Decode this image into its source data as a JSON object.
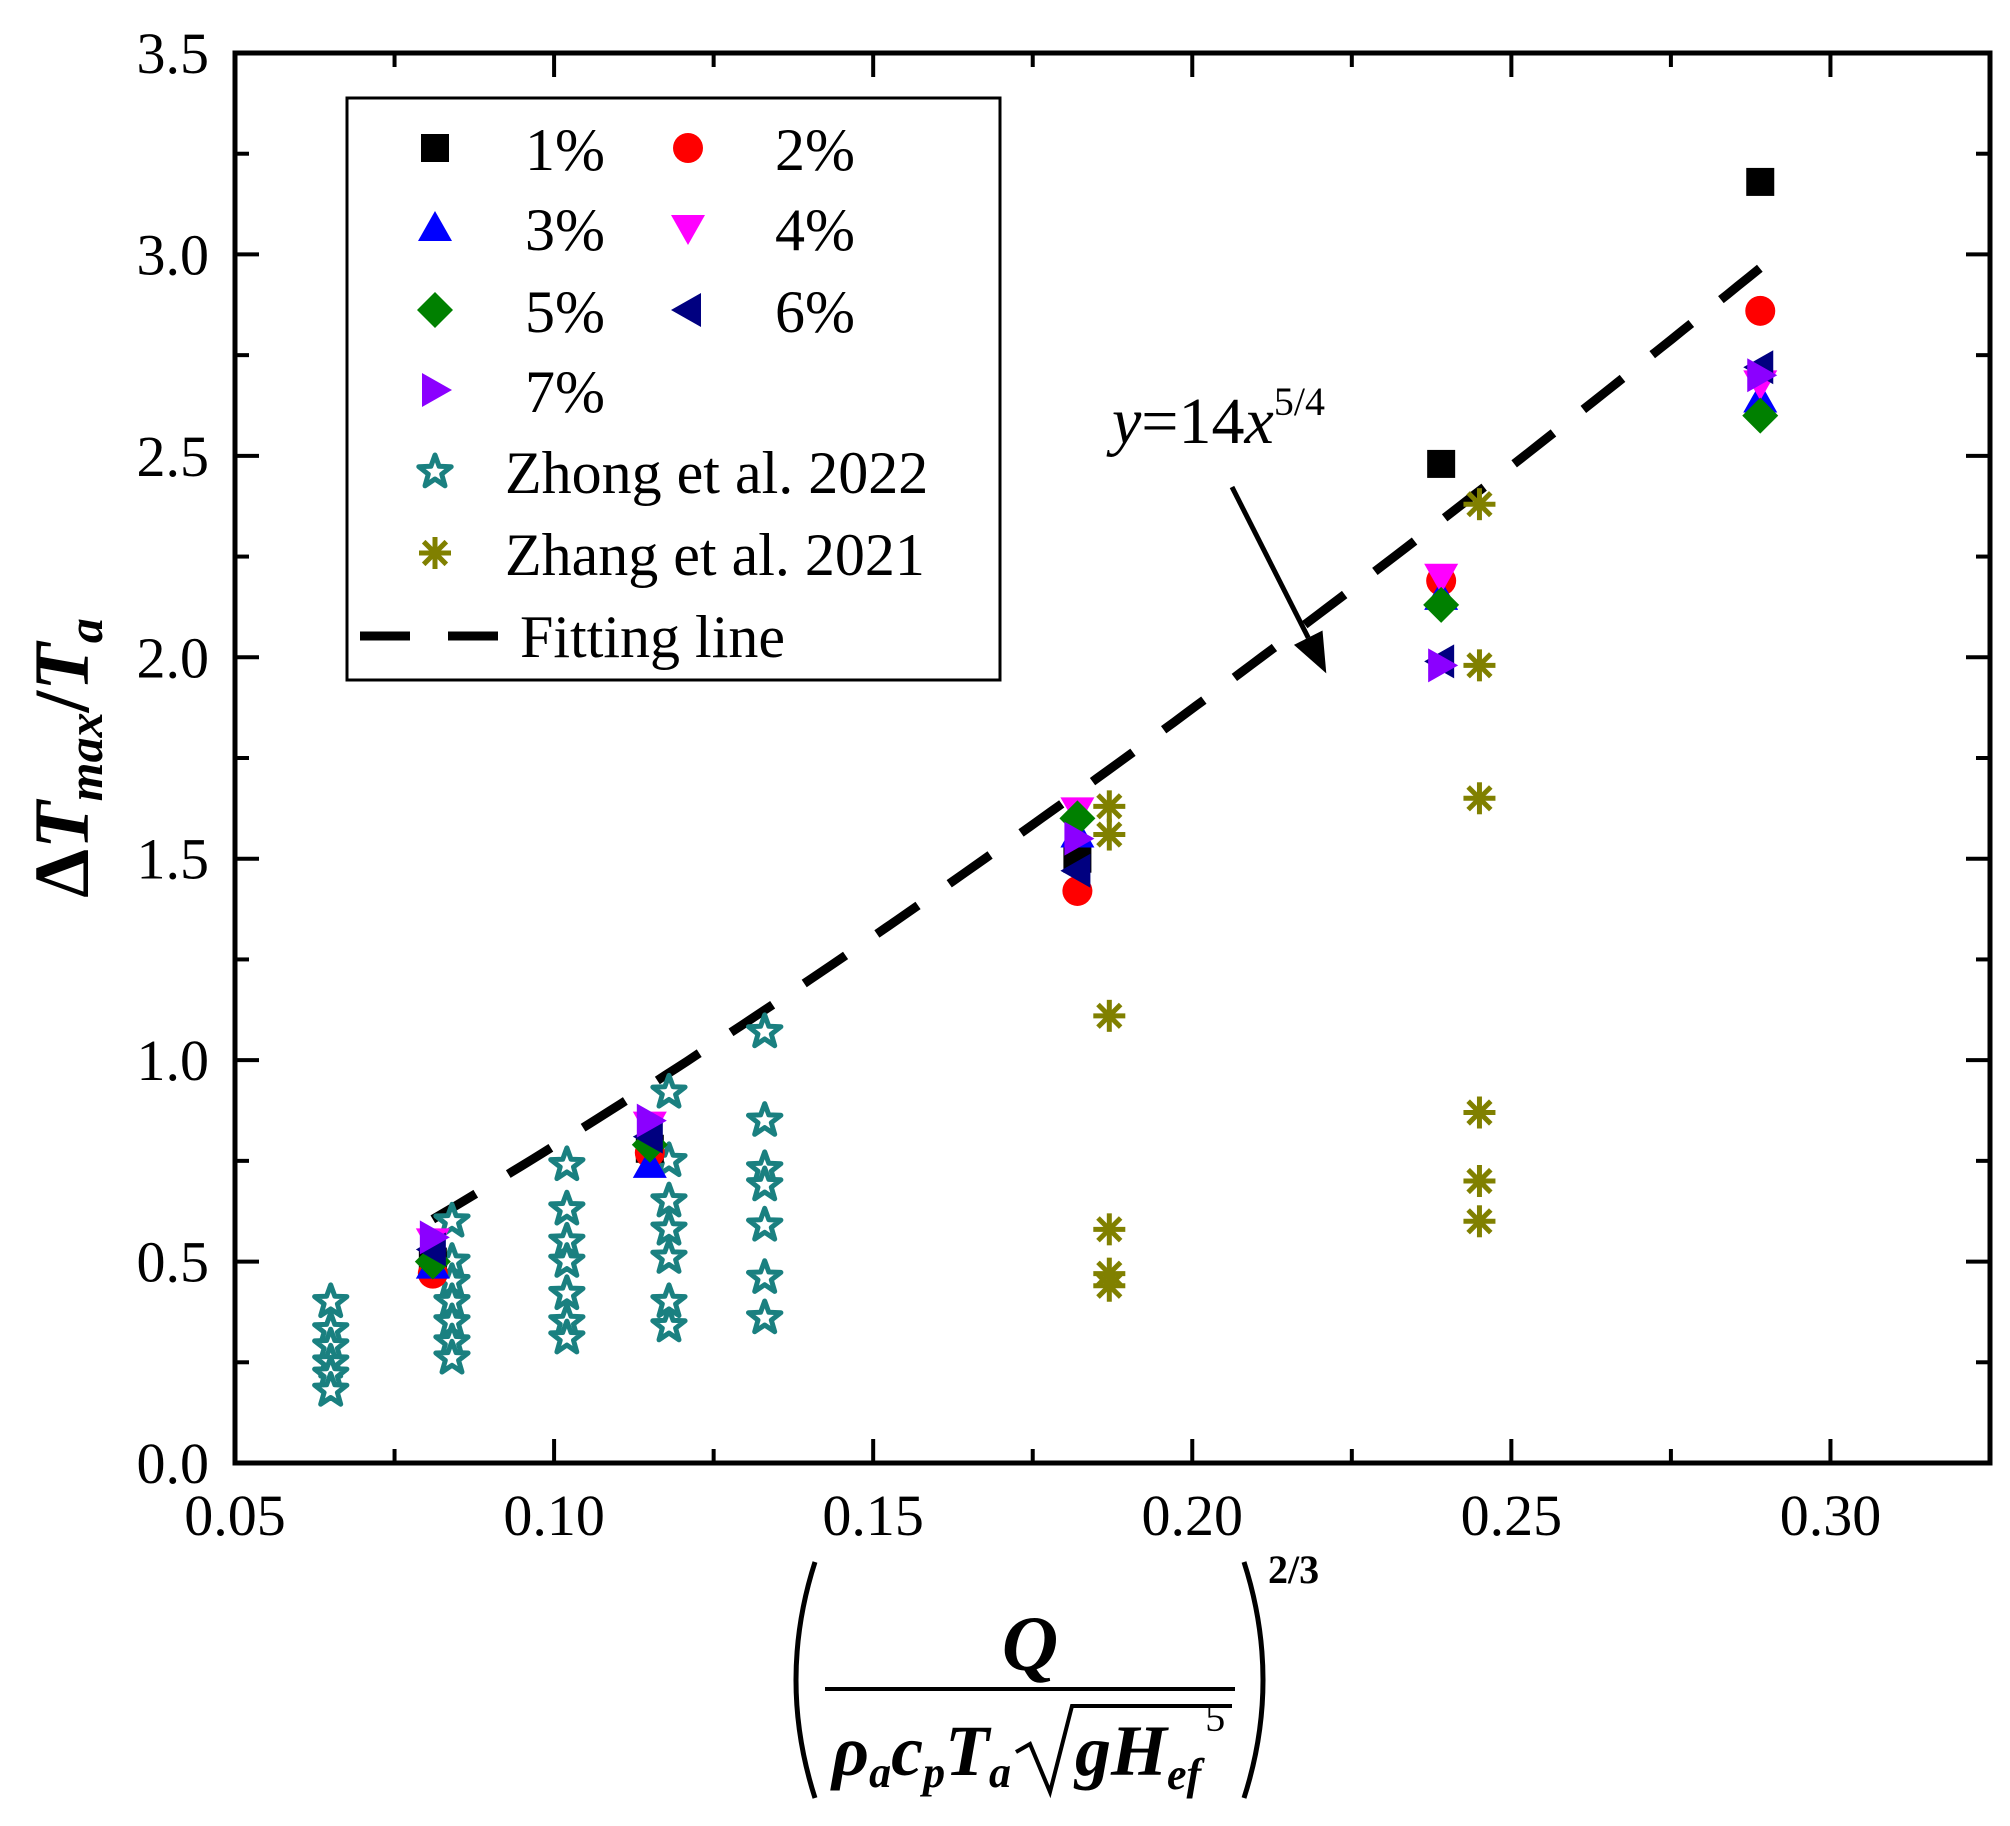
{
  "chart_data": {
    "type": "scatter",
    "xlim": [
      0.05,
      0.325
    ],
    "ylim": [
      0.0,
      3.5
    ],
    "x_ticks": [
      "0.05",
      "0.10",
      "0.15",
      "0.20",
      "0.25",
      "0.30"
    ],
    "y_ticks": [
      "0.0",
      "0.5",
      "1.0",
      "1.5",
      "2.0",
      "2.5",
      "3.0",
      "3.5"
    ],
    "ylabel": {
      "delta": "Δ",
      "T1": "T",
      "sub1": "max",
      "slash": "/",
      "T2": "T",
      "sub2": "a"
    },
    "xlabel": {
      "numerator": "Q",
      "rho": "ρ",
      "rho_sub": "a",
      "c": "c",
      "c_sub": "p",
      "T": "T",
      "T_sub": "a",
      "g": "g",
      "H": "H",
      "H_sub": "ef",
      "H_sup": "5",
      "exponent": "2/3"
    },
    "annotation": {
      "y": "y",
      "eq": "=14",
      "x": "x",
      "power": "5/4",
      "arrow_to": [
        0.221,
        1.96
      ]
    },
    "series": [
      {
        "name": "1%",
        "marker": "square",
        "color": "#000000",
        "points": [
          [
            0.081,
            0.5
          ],
          [
            0.115,
            0.78
          ],
          [
            0.182,
            1.5
          ],
          [
            0.239,
            2.48
          ],
          [
            0.289,
            3.18
          ]
        ]
      },
      {
        "name": "2%",
        "marker": "circle",
        "color": "#ff0000",
        "points": [
          [
            0.081,
            0.47
          ],
          [
            0.115,
            0.77
          ],
          [
            0.182,
            1.42
          ],
          [
            0.239,
            2.19
          ],
          [
            0.289,
            2.86
          ]
        ]
      },
      {
        "name": "3%",
        "marker": "triangle-up",
        "color": "#0000ff",
        "points": [
          [
            0.081,
            0.49
          ],
          [
            0.115,
            0.74
          ],
          [
            0.182,
            1.56
          ],
          [
            0.239,
            2.15
          ],
          [
            0.289,
            2.64
          ]
        ]
      },
      {
        "name": "4%",
        "marker": "triangle-down",
        "color": "#ff00ff",
        "points": [
          [
            0.081,
            0.55
          ],
          [
            0.115,
            0.84
          ],
          [
            0.182,
            1.62
          ],
          [
            0.239,
            2.2
          ],
          [
            0.289,
            2.68
          ]
        ]
      },
      {
        "name": "5%",
        "marker": "diamond",
        "color": "#008000",
        "points": [
          [
            0.081,
            0.5
          ],
          [
            0.115,
            0.79
          ],
          [
            0.182,
            1.6
          ],
          [
            0.239,
            2.13
          ],
          [
            0.289,
            2.6
          ]
        ]
      },
      {
        "name": "6%",
        "marker": "triangle-left",
        "color": "#000080",
        "points": [
          [
            0.081,
            0.53
          ],
          [
            0.115,
            0.81
          ],
          [
            0.182,
            1.47
          ],
          [
            0.239,
            1.99
          ],
          [
            0.289,
            2.72
          ]
        ]
      },
      {
        "name": "7%",
        "marker": "triangle-right",
        "color": "#8b00ff",
        "points": [
          [
            0.081,
            0.56
          ],
          [
            0.115,
            0.85
          ],
          [
            0.182,
            1.55
          ],
          [
            0.239,
            1.98
          ],
          [
            0.289,
            2.7
          ]
        ]
      },
      {
        "name": "Zhong et al. 2022",
        "marker": "star-open",
        "color": "#1a8080",
        "points": [
          [
            0.065,
            0.4
          ],
          [
            0.065,
            0.33
          ],
          [
            0.065,
            0.29
          ],
          [
            0.065,
            0.25
          ],
          [
            0.065,
            0.22
          ],
          [
            0.065,
            0.18
          ],
          [
            0.084,
            0.6
          ],
          [
            0.084,
            0.5
          ],
          [
            0.084,
            0.45
          ],
          [
            0.084,
            0.4
          ],
          [
            0.084,
            0.35
          ],
          [
            0.084,
            0.3
          ],
          [
            0.084,
            0.26
          ],
          [
            0.102,
            0.74
          ],
          [
            0.102,
            0.63
          ],
          [
            0.102,
            0.55
          ],
          [
            0.102,
            0.5
          ],
          [
            0.102,
            0.42
          ],
          [
            0.102,
            0.35
          ],
          [
            0.102,
            0.31
          ],
          [
            0.118,
            0.92
          ],
          [
            0.118,
            0.75
          ],
          [
            0.118,
            0.65
          ],
          [
            0.118,
            0.58
          ],
          [
            0.118,
            0.51
          ],
          [
            0.118,
            0.4
          ],
          [
            0.118,
            0.34
          ],
          [
            0.133,
            1.07
          ],
          [
            0.133,
            0.85
          ],
          [
            0.133,
            0.73
          ],
          [
            0.133,
            0.69
          ],
          [
            0.133,
            0.59
          ],
          [
            0.133,
            0.46
          ],
          [
            0.133,
            0.36
          ]
        ]
      },
      {
        "name": "Zhang et al. 2021",
        "marker": "asterisk",
        "color": "#808000",
        "points": [
          [
            0.187,
            1.63
          ],
          [
            0.187,
            1.56
          ],
          [
            0.187,
            1.11
          ],
          [
            0.187,
            0.58
          ],
          [
            0.187,
            0.47
          ],
          [
            0.187,
            0.44
          ],
          [
            0.245,
            2.38
          ],
          [
            0.245,
            1.98
          ],
          [
            0.245,
            1.65
          ],
          [
            0.245,
            0.87
          ],
          [
            0.245,
            0.7
          ],
          [
            0.245,
            0.6
          ]
        ]
      },
      {
        "name": "Fitting line",
        "type": "dashed-line",
        "color": "#000000",
        "equation": "y = 14 x^(5/4)",
        "x_range": [
          0.081,
          0.289
        ]
      }
    ]
  }
}
